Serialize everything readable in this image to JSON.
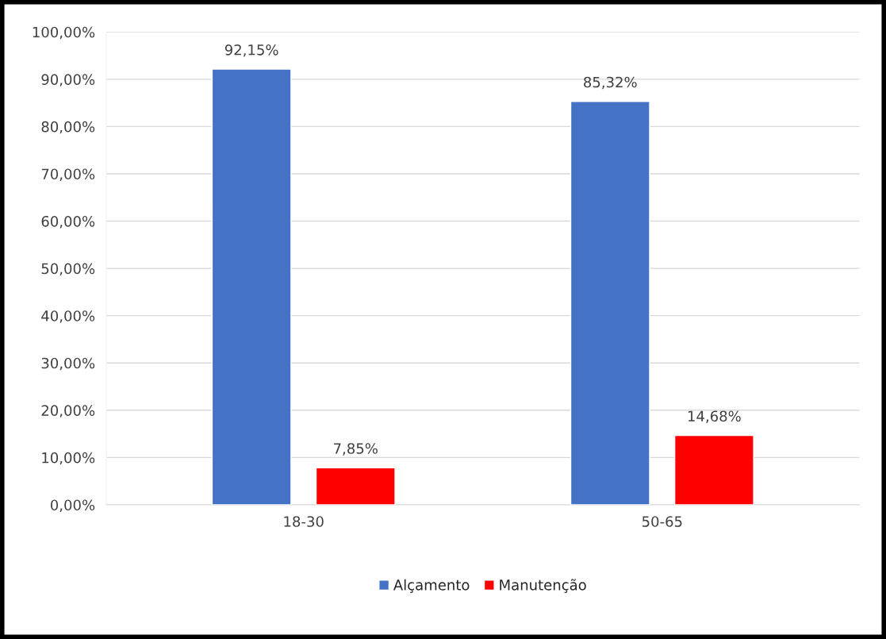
{
  "chart_data": {
    "type": "bar",
    "categories": [
      "18-30",
      "50-65"
    ],
    "series": [
      {
        "name": "Alçamento",
        "color": "#4472c4",
        "values": [
          92.15,
          85.32
        ],
        "value_labels": [
          "92,15%",
          "85,32%"
        ]
      },
      {
        "name": "Manutenção",
        "color": "#ff0000",
        "values": [
          7.85,
          14.68
        ],
        "value_labels": [
          "7,85%",
          "14,68%"
        ]
      }
    ],
    "ylim": [
      0,
      100
    ],
    "yticks": [
      {
        "value": 0,
        "label": "0,00%"
      },
      {
        "value": 10,
        "label": "10,00%"
      },
      {
        "value": 20,
        "label": "20,00%"
      },
      {
        "value": 30,
        "label": "30,00%"
      },
      {
        "value": 40,
        "label": "40,00%"
      },
      {
        "value": 50,
        "label": "50,00%"
      },
      {
        "value": 60,
        "label": "60,00%"
      },
      {
        "value": 70,
        "label": "70,00%"
      },
      {
        "value": 80,
        "label": "80,00%"
      },
      {
        "value": 90,
        "label": "90,00%"
      },
      {
        "value": 100,
        "label": "100,00%"
      }
    ],
    "grid": "y",
    "legend": "bottom"
  }
}
